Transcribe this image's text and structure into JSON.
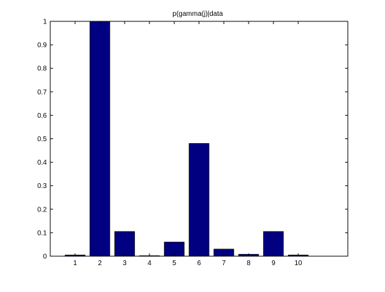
{
  "colors": {
    "bar_fill": "#000080",
    "bar_edge": "#000000",
    "axes": "#000000",
    "background": "#ffffff"
  },
  "chart_data": {
    "type": "bar",
    "title": "p(gamma(j)|data",
    "xlabel": "",
    "ylabel": "",
    "categories": [
      "1",
      "2",
      "3",
      "4",
      "5",
      "6",
      "7",
      "8",
      "9",
      "10"
    ],
    "values": [
      0.005,
      1.0,
      0.105,
      0.002,
      0.06,
      0.48,
      0.03,
      0.008,
      0.105,
      0.005
    ],
    "xlim": [
      0,
      12
    ],
    "ylim": [
      0,
      1
    ],
    "yticks": [
      0,
      0.1,
      0.2,
      0.3,
      0.4,
      0.5,
      0.6,
      0.7,
      0.8,
      0.9,
      1
    ],
    "ytick_labels": [
      "0",
      "0.1",
      "0.2",
      "0.3",
      "0.4",
      "0.5",
      "0.6",
      "0.7",
      "0.8",
      "0.9",
      "1"
    ],
    "xticks": [
      1,
      2,
      3,
      4,
      5,
      6,
      7,
      8,
      9,
      10
    ],
    "bar_width": 0.8,
    "grid": false,
    "legend": "none"
  }
}
